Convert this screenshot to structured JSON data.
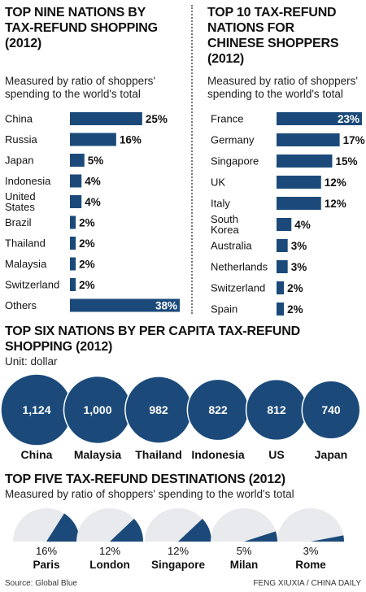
{
  "colors": {
    "bar": "#1b4a7a",
    "pie_light": "#e8eaee",
    "rule": "#777777"
  },
  "left": {
    "title_lines": [
      "TOP NINE NATIONS BY",
      "TAX-REFUND SHOPPING",
      "(2012)"
    ],
    "subtitle_lines": [
      "Measured by ratio of shoppers'",
      "spending to the world's total"
    ]
  },
  "right": {
    "title_lines": [
      "TOP 10 TAX-REFUND",
      "NATIONS FOR",
      "CHINESE SHOPPERS",
      "(2012)"
    ],
    "subtitle_lines": [
      "Measured by ratio of shoppers'",
      "spending to the world's total"
    ]
  },
  "middle": {
    "title_lines": [
      "TOP SIX NATIONS BY PER CAPITA TAX-REFUND",
      "SHOPPING (2012)"
    ],
    "unit": "Unit: dollar"
  },
  "bottom": {
    "title": "TOP FIVE TAX-REFUND DESTINATIONS (2012)",
    "subtitle": "Measured by ratio of shoppers' spending to the world's total"
  },
  "footer": {
    "source": "Source: Global Blue",
    "credit": "FENG XIUXIA / CHINA DAILY"
  },
  "chart_data": [
    {
      "type": "bar",
      "orientation": "horizontal",
      "categories": [
        "China",
        "Russia",
        "Japan",
        "Indonesia",
        "United States",
        "Brazil",
        "Thailand",
        "Malaysia",
        "Switzerland",
        "Others"
      ],
      "values": [
        25,
        16,
        5,
        4,
        4,
        2,
        2,
        2,
        2,
        38
      ],
      "labels": [
        "25%",
        "16%",
        "5%",
        "4%",
        "4%",
        "2%",
        "2%",
        "2%",
        "2%",
        "38%"
      ],
      "label_inside": [
        false,
        false,
        false,
        false,
        false,
        false,
        false,
        false,
        false,
        true
      ],
      "scale_max": 38
    },
    {
      "type": "bar",
      "orientation": "horizontal",
      "categories": [
        "France",
        "Germany",
        "Singapore",
        "UK",
        "Italy",
        "South Korea",
        "Australia",
        "Netherlands",
        "Switzerland",
        "Spain"
      ],
      "values": [
        23,
        17,
        15,
        12,
        12,
        4,
        3,
        3,
        2,
        2
      ],
      "labels": [
        "23%",
        "17%",
        "15%",
        "12%",
        "12%",
        "4%",
        "3%",
        "3%",
        "2%",
        "2%"
      ],
      "label_inside": [
        true,
        false,
        false,
        false,
        false,
        false,
        false,
        false,
        false,
        false
      ],
      "scale_max": 23
    },
    {
      "type": "bubble",
      "categories": [
        "China",
        "Malaysia",
        "Thailand",
        "Indonesia",
        "US",
        "Japan"
      ],
      "values": [
        1124,
        1000,
        982,
        822,
        812,
        740
      ],
      "labels": [
        "1,124",
        "1,000",
        "982",
        "822",
        "812",
        "740"
      ]
    },
    {
      "type": "pie",
      "categories": [
        "Paris",
        "London",
        "Singapore",
        "Milan",
        "Rome"
      ],
      "values": [
        16,
        12,
        12,
        5,
        3
      ],
      "labels": [
        "16%",
        "12%",
        "12%",
        "5%",
        "3%"
      ]
    }
  ]
}
